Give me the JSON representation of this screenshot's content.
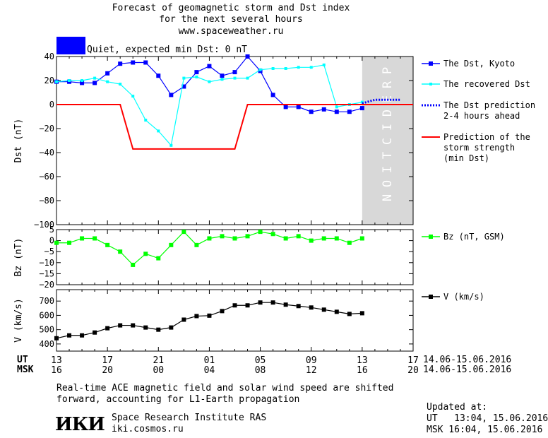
{
  "header": {
    "line1": "Forecast of geomagnetic storm and Dst index",
    "line2": "for the next several hours",
    "line3": "www.spaceweather.ru"
  },
  "status": {
    "text": "Quiet, expected min Dst: 0 nT",
    "color": "#0000ff"
  },
  "chart_data": [
    {
      "type": "line",
      "ylabel": "Dst (nT)",
      "ylim": [
        -100,
        40
      ],
      "yticks": [
        40,
        20,
        0,
        -20,
        -40,
        -60,
        -80,
        -100
      ],
      "x_unit": "hours since 14.06 13:00 UT",
      "xlim": [
        0,
        28
      ],
      "prediction_band": {
        "x": [
          24,
          28
        ],
        "label": "PREDICTION"
      },
      "series": [
        {
          "name": "The Dst, Kyoto",
          "color": "#0000ff",
          "marker": "square",
          "x": [
            0,
            1,
            2,
            3,
            4,
            5,
            6,
            7,
            8,
            9,
            10,
            11,
            12,
            13,
            14,
            15,
            16,
            17,
            18,
            19,
            20,
            21,
            22,
            23,
            24
          ],
          "y": [
            19,
            19,
            18,
            18,
            26,
            34,
            35,
            35,
            24,
            8,
            15,
            27,
            32,
            24,
            27,
            40,
            28,
            8,
            -2,
            -2,
            -6,
            -4,
            -6,
            -6,
            -3
          ]
        },
        {
          "name": "The recovered Dst",
          "color": "#00ffff",
          "marker": "small-square",
          "x": [
            0,
            1,
            2,
            3,
            4,
            5,
            6,
            7,
            8,
            9,
            10,
            11,
            12,
            13,
            14,
            15,
            16,
            17,
            18,
            19,
            20,
            21,
            22,
            23,
            24
          ],
          "y": [
            19,
            20,
            20,
            22,
            19,
            17,
            7,
            -13,
            -22,
            -34,
            22,
            23,
            19,
            21,
            22,
            22,
            29,
            30,
            30,
            31,
            31,
            33,
            -2,
            0,
            2
          ]
        },
        {
          "name": "The Dst prediction\n2-4 hours ahead",
          "color": "#0000ff",
          "style": "dotted",
          "x": [
            24,
            25,
            26,
            27
          ],
          "y": [
            1,
            4,
            4,
            4
          ]
        },
        {
          "name": "Prediction of the\nstorm strength\n(min Dst)",
          "color": "#ff0000",
          "style": "step",
          "x": [
            0,
            5,
            6,
            14,
            15,
            28
          ],
          "y": [
            0,
            0,
            -37,
            -37,
            0,
            0
          ]
        }
      ]
    },
    {
      "type": "line",
      "ylabel": "Bz (nT)",
      "ylim": [
        -20,
        5
      ],
      "yticks": [
        5,
        0,
        -5,
        -10,
        -15,
        -20
      ],
      "xlim": [
        0,
        28
      ],
      "series": [
        {
          "name": "Bz (nT, GSM)",
          "color": "#00ff00",
          "marker": "square",
          "x": [
            0,
            1,
            2,
            3,
            4,
            5,
            6,
            7,
            8,
            9,
            10,
            11,
            12,
            13,
            14,
            15,
            16,
            17,
            18,
            19,
            20,
            21,
            22,
            23,
            24
          ],
          "y": [
            -1,
            -1,
            1,
            1,
            -2,
            -5,
            -11,
            -6,
            -8,
            -2,
            4,
            -2,
            1,
            2,
            1,
            2,
            4,
            3,
            1,
            2,
            0,
            1,
            1,
            -1,
            1
          ]
        }
      ]
    },
    {
      "type": "line",
      "ylabel": "V (km/s)",
      "ylim": [
        350,
        780
      ],
      "yticks": [
        700,
        600,
        500,
        400
      ],
      "xlim": [
        0,
        28
      ],
      "series": [
        {
          "name": "V (km/s)",
          "color": "#000000",
          "marker": "square",
          "x": [
            0,
            1,
            2,
            3,
            4,
            5,
            6,
            7,
            8,
            9,
            10,
            11,
            12,
            13,
            14,
            15,
            16,
            17,
            18,
            19,
            20,
            21,
            22,
            23,
            24
          ],
          "y": [
            440,
            460,
            460,
            480,
            510,
            530,
            530,
            515,
            500,
            515,
            570,
            595,
            598,
            630,
            670,
            670,
            690,
            690,
            675,
            665,
            655,
            640,
            625,
            610,
            615
          ]
        }
      ]
    }
  ],
  "xaxis": {
    "ut_label": "UT",
    "msk_label": "MSK",
    "ut_ticks": [
      "13",
      "17",
      "21",
      "01",
      "05",
      "09",
      "13",
      "17"
    ],
    "msk_ticks": [
      "16",
      "20",
      "00",
      "04",
      "08",
      "12",
      "16",
      "20"
    ],
    "date_range": "14.06-15.06.2016"
  },
  "footer": {
    "note_line1": "Real-time ACE magnetic field and solar wind speed are shifted",
    "note_line2": "forward, accounting for L1-Earth propagation",
    "org_name": "Space Research Institute RAS",
    "org_url": "iki.cosmos.ru",
    "logo_text": "ИКИ",
    "updated_label": "Updated at:",
    "updated_ut": "UT   13:04, 15.06.2016",
    "updated_msk": "MSK 16:04, 15.06.2016"
  }
}
